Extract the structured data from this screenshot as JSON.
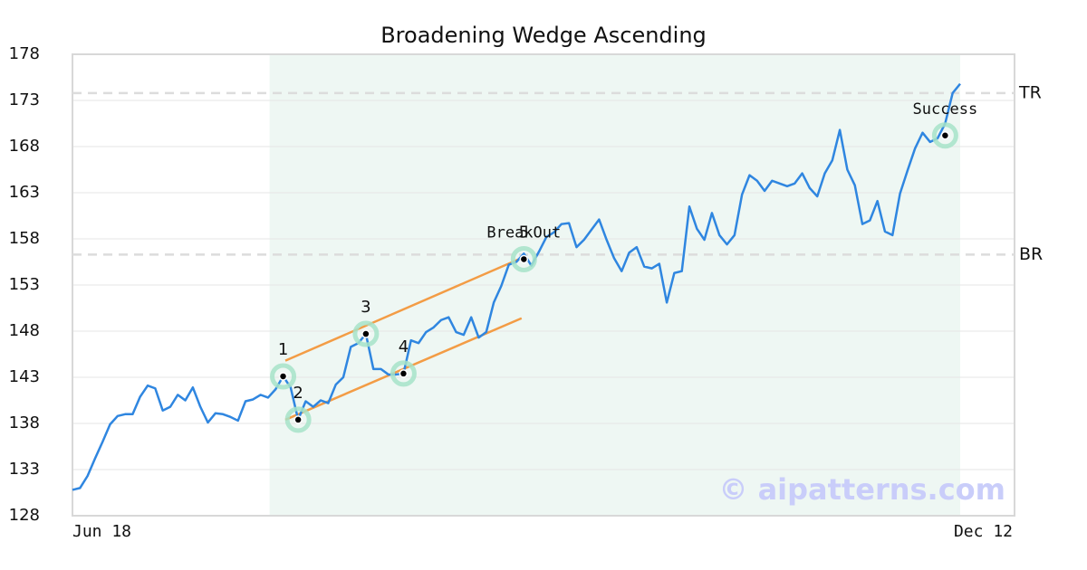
{
  "chart_data": {
    "type": "line",
    "title": "Broadening Wedge Ascending",
    "categories": [
      "Jun 18",
      null,
      null,
      null,
      null,
      null,
      null,
      null,
      null,
      null,
      null,
      null,
      null,
      null,
      null,
      null,
      null,
      null,
      null,
      null,
      null,
      null,
      null,
      null,
      null,
      null,
      null,
      null,
      null,
      null,
      null,
      null,
      null,
      null,
      null,
      null,
      null,
      null,
      null,
      null,
      null,
      null,
      null,
      null,
      null,
      null,
      null,
      null,
      null,
      null,
      null,
      null,
      null,
      null,
      null,
      null,
      null,
      null,
      null,
      null,
      null,
      null,
      null,
      null,
      null,
      null,
      null,
      null,
      null,
      null,
      null,
      null,
      null,
      null,
      null,
      null,
      null,
      null,
      null,
      null,
      null,
      null,
      null,
      null,
      null,
      null,
      null,
      null,
      null,
      null,
      null,
      null,
      null,
      null,
      null,
      null,
      null,
      null,
      null,
      null,
      null,
      null,
      null,
      null,
      null,
      null,
      null,
      null,
      null,
      null,
      null,
      null,
      null,
      null,
      null,
      null,
      null,
      null,
      "Dec 12"
    ],
    "series": [
      {
        "color": "#2f86e0",
        "values": [
          130.8,
          131.0,
          132.3,
          134.2,
          136.0,
          137.9,
          138.8,
          139.0,
          139.0,
          140.9,
          142.1,
          141.8,
          139.4,
          139.8,
          141.1,
          140.5,
          141.9,
          139.8,
          138.1,
          139.1,
          139.0,
          138.7,
          138.3,
          140.4,
          140.6,
          141.1,
          140.8,
          141.7,
          143.1,
          141.9,
          138.4,
          140.4,
          139.8,
          140.5,
          140.2,
          142.2,
          143.0,
          146.3,
          146.7,
          147.7,
          143.9,
          143.9,
          143.3,
          143.3,
          143.4,
          147.0,
          146.7,
          147.9,
          148.4,
          149.2,
          149.5,
          147.9,
          147.6,
          149.5,
          147.3,
          147.9,
          151.1,
          152.9,
          155.2,
          155.5,
          156.4,
          155.1,
          156.6,
          158.2,
          158.7,
          159.6,
          159.7,
          157.1,
          157.9,
          159.0,
          160.1,
          157.9,
          155.9,
          154.5,
          156.5,
          157.1,
          155.0,
          154.8,
          155.3,
          151.1,
          154.3,
          154.5,
          161.5,
          159.1,
          157.9,
          160.8,
          158.4,
          157.4,
          158.4,
          162.8,
          164.9,
          164.3,
          163.2,
          164.3,
          164.0,
          163.7,
          164.0,
          165.1,
          163.5,
          162.6,
          165.1,
          166.5,
          169.8,
          165.5,
          163.8,
          159.6,
          160.0,
          162.1,
          158.8,
          158.4,
          162.9,
          165.4,
          167.8,
          169.5,
          168.5,
          168.9,
          170.5,
          173.8,
          174.8
        ]
      }
    ],
    "ylim": [
      128,
      178
    ],
    "yticks": [
      128,
      133,
      138,
      143,
      148,
      153,
      158,
      163,
      168,
      173,
      178
    ],
    "grid": true,
    "shaded_range": [
      26.2,
      118
    ],
    "levels": [
      {
        "label": "TR",
        "value": 173.8
      },
      {
        "label": "BR",
        "value": 156.3
      }
    ],
    "trend_lines": [
      {
        "color": "#f39c45",
        "start": {
          "index": 28.3,
          "value": 144.8
        },
        "end": {
          "index": 60.2,
          "value": 156.1
        }
      },
      {
        "color": "#f39c45",
        "start": {
          "index": 28.3,
          "value": 138.4
        },
        "end": {
          "index": 59.7,
          "value": 149.4
        }
      }
    ],
    "annotations": [
      {
        "index": 28,
        "value": 143.1,
        "label": "1"
      },
      {
        "index": 30,
        "value": 138.4,
        "label": "2"
      },
      {
        "index": 39,
        "value": 147.7,
        "label": "3"
      },
      {
        "index": 44,
        "value": 143.4,
        "label": "4"
      },
      {
        "index": 60,
        "value": 155.8,
        "label": "5",
        "note": "BreakOut"
      },
      {
        "index": 116,
        "value": 169.2,
        "note": "Success"
      }
    ],
    "watermark": "© aipatterns.com"
  }
}
